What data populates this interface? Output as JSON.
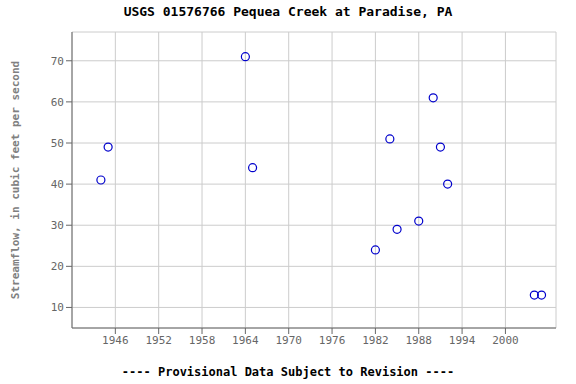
{
  "chart_data": {
    "type": "scatter",
    "title": "USGS 01576766 Pequea Creek at Paradise, PA",
    "subtitle": "---- Provisional Data Subject to Revision ----",
    "y_label": "Streamflow, in cubic feet per second",
    "x": [
      1944,
      1945,
      1964,
      1965,
      1982,
      1984,
      1985,
      1988,
      1990,
      1991,
      1992,
      2004,
      2005
    ],
    "values": [
      41,
      49,
      71,
      44,
      24,
      51,
      29,
      31,
      61,
      49,
      40,
      13,
      13
    ],
    "color": "#0000cc",
    "marker": "open_circle",
    "xlim": [
      1940,
      2007
    ],
    "ylim": [
      5,
      77
    ],
    "xticks": [
      1946,
      1952,
      1958,
      1964,
      1970,
      1976,
      1982,
      1988,
      1994,
      2000
    ],
    "yticks": [
      10,
      20,
      30,
      40,
      50,
      60,
      70
    ],
    "grid": true
  }
}
